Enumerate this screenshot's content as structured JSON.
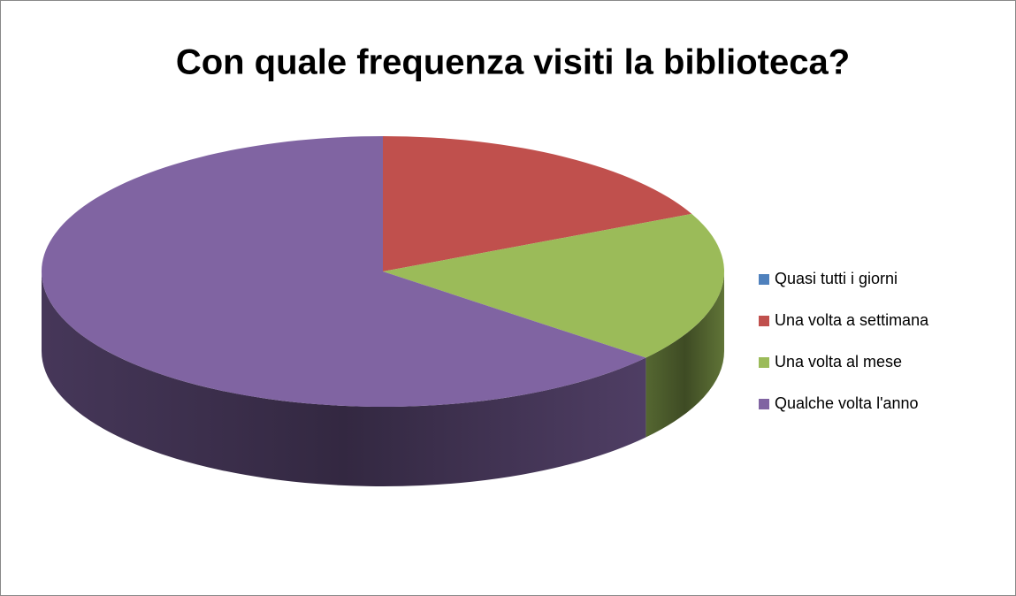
{
  "chart_data": {
    "type": "pie3d",
    "title": "Con quale frequenza visiti la biblioteca?",
    "categories": [
      "Quasi tutti i giorni",
      "Una volta a settimana",
      "Una volta al mese",
      "Qualche volta l'anno"
    ],
    "values": [
      0,
      18,
      18,
      64
    ],
    "colors": [
      "#4f81bd",
      "#c0504d",
      "#9bbb59",
      "#8064a2"
    ],
    "legend": "right"
  }
}
